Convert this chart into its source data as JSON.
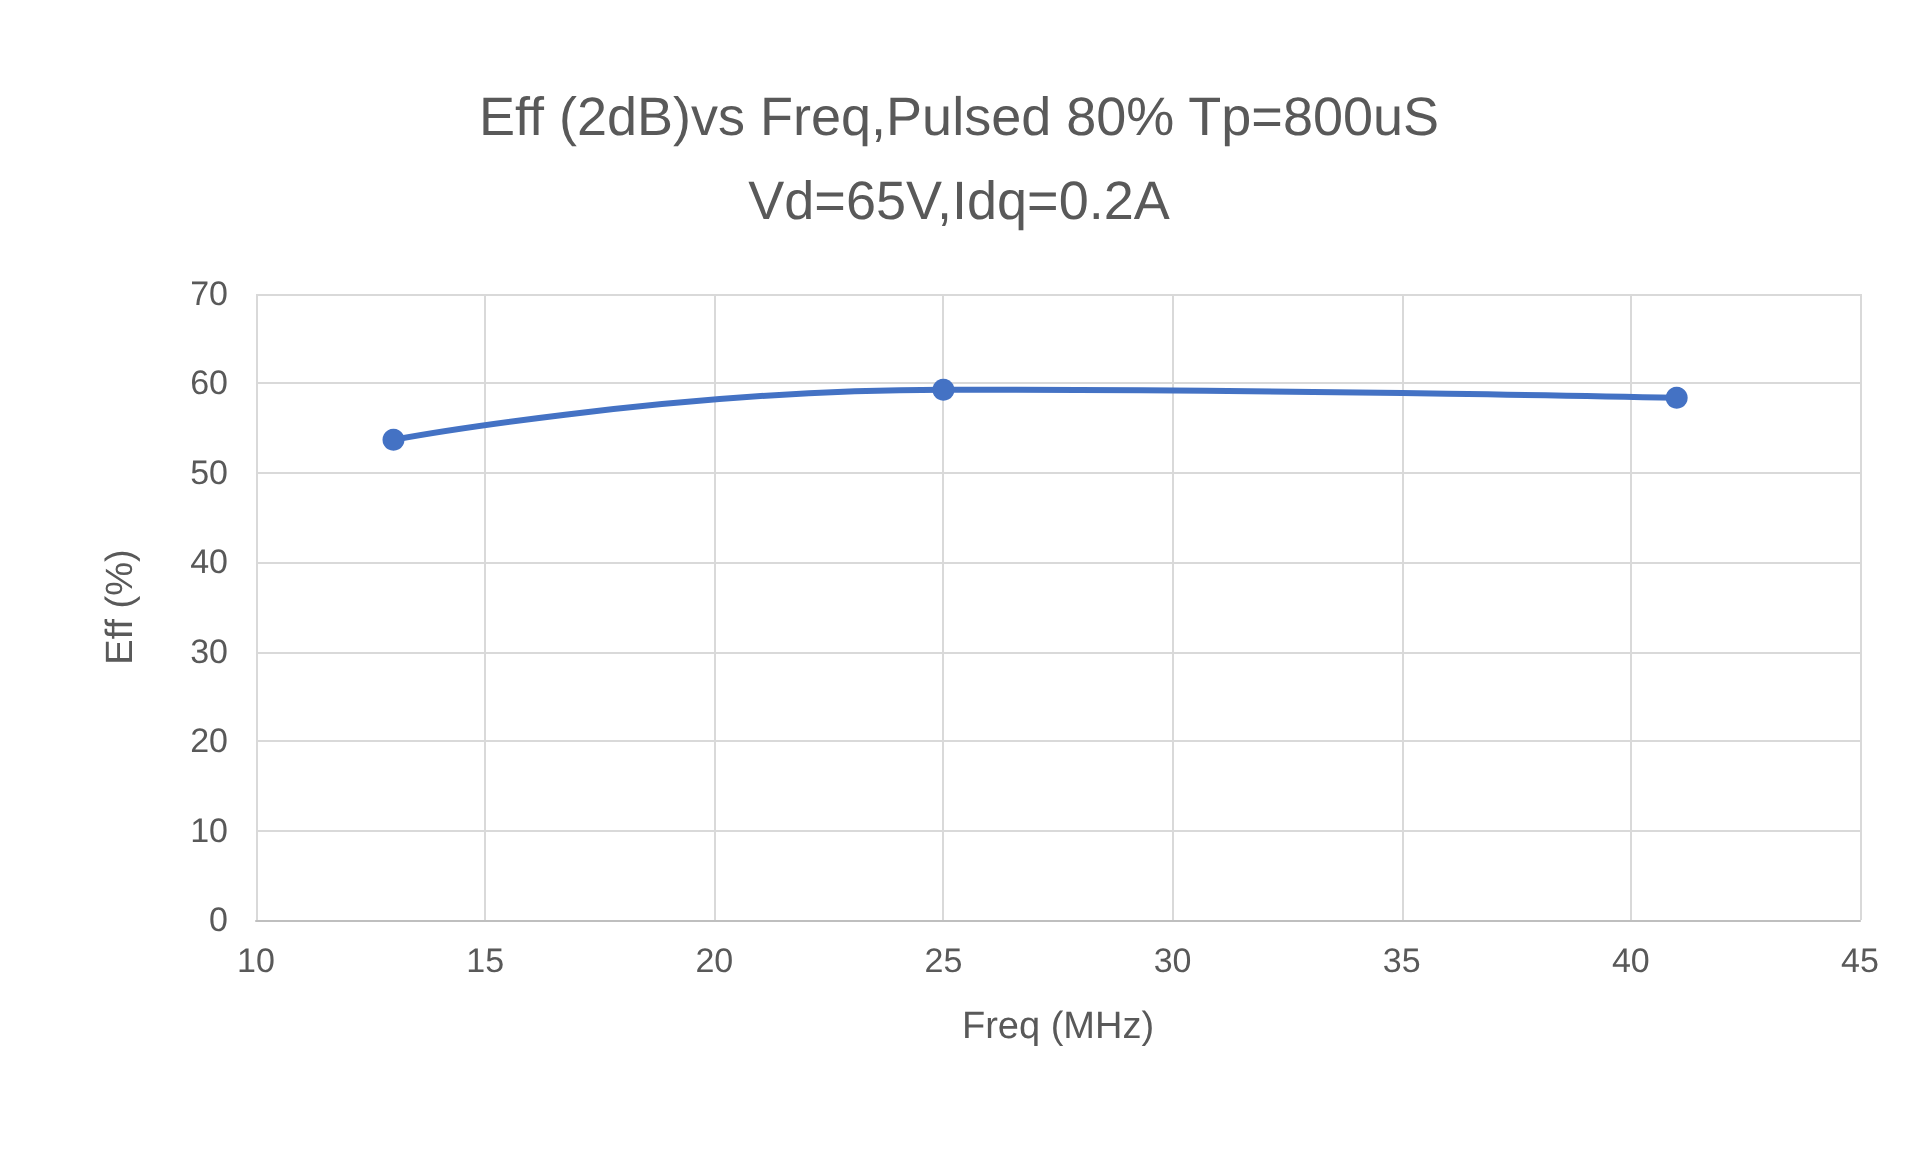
{
  "chart_data": {
    "type": "line",
    "title": "Eff (2dB)vs Freq,Pulsed 80% Tp=800uS",
    "subtitle": "Vd=65V,Idq=0.2A",
    "xlabel": "Freq (MHz)",
    "ylabel": "Eff (%)",
    "x": [
      13,
      25,
      41
    ],
    "series": [
      {
        "color": "#4472c4",
        "values": [
          53.7,
          59.3,
          58.4
        ]
      }
    ],
    "xlim": [
      10,
      45
    ],
    "xticks": [
      10,
      15,
      20,
      25,
      30,
      35,
      40,
      45
    ],
    "ylim": [
      0,
      70
    ],
    "yticks": [
      0,
      10,
      20,
      30,
      40,
      50,
      60,
      70
    ],
    "grid": true,
    "marker": "circle"
  }
}
